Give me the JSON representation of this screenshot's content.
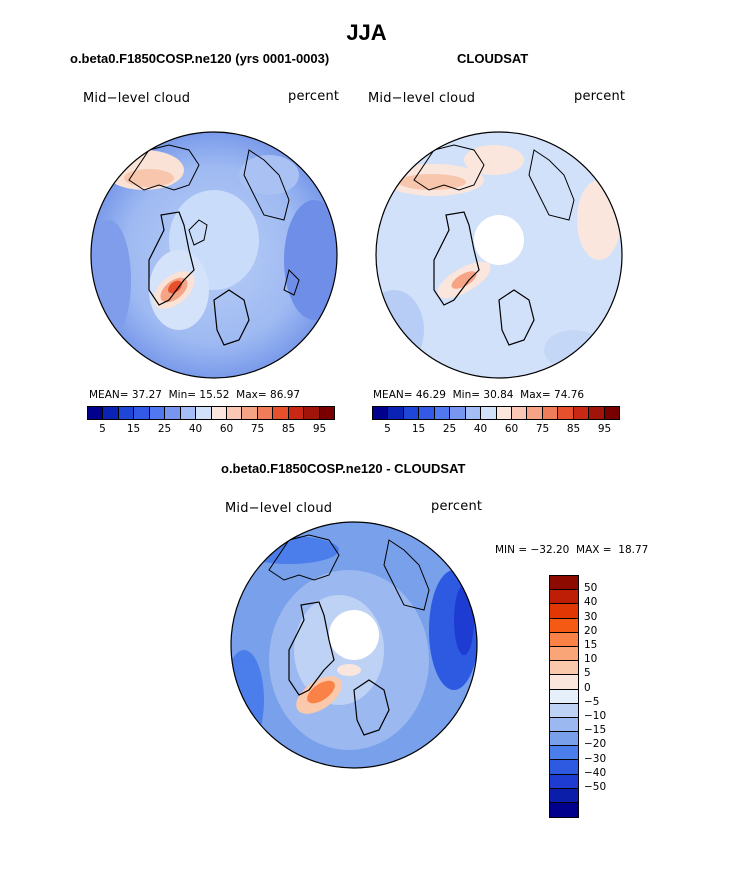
{
  "title": "JJA",
  "panels": {
    "model": {
      "title": "o.beta0.F1850COSP.ne120 (yrs 0001-0003)",
      "field_label": "Mid−level cloud",
      "units": "percent",
      "stats": {
        "mean_label": "MEAN=",
        "mean": "37.27",
        "min_label": "Min=",
        "min": "15.52",
        "max_label": "Max=",
        "max": "86.97"
      }
    },
    "obs": {
      "title": "CLOUDSAT",
      "field_label": "Mid−level cloud",
      "units": "percent",
      "stats": {
        "mean_label": "MEAN=",
        "mean": "46.29",
        "min_label": "Min=",
        "min": "30.84",
        "max_label": "Max=",
        "max": "74.76"
      }
    },
    "diff": {
      "title": "o.beta0.F1850COSP.ne120 - CLOUDSAT",
      "field_label": "Mid−level cloud",
      "units": "percent",
      "minmax": "MIN = −32.20  MAX =  18.77"
    }
  },
  "abs_colorbar": {
    "colors": [
      "#00008c",
      "#0a23b4",
      "#1e46d7",
      "#325ae6",
      "#5078f0",
      "#7896f0",
      "#a5bef5",
      "#d2e1fa",
      "#fae6dc",
      "#fac8b4",
      "#f5a586",
      "#f07d5a",
      "#e6502d",
      "#c82814",
      "#a0140a",
      "#780000"
    ],
    "tick_labels": [
      "5",
      "15",
      "25",
      "40",
      "60",
      "75",
      "85",
      "95"
    ]
  },
  "diff_colorbar": {
    "colors": [
      "#8c0a00",
      "#be1e05",
      "#e13705",
      "#f55a14",
      "#fa8246",
      "#faa578",
      "#fac8aa",
      "#fae6dc",
      "#e6f0fa",
      "#bed2f5",
      "#9bb9f0",
      "#78a0eb",
      "#4b7deb",
      "#2d5ae1",
      "#1e3cd2",
      "#0a1eaa",
      "#00008c"
    ],
    "tick_labels": [
      "50",
      "40",
      "30",
      "20",
      "15",
      "10",
      "5",
      "0",
      "−5",
      "−10",
      "−15",
      "−20",
      "−30",
      "−40",
      "−50"
    ]
  }
}
